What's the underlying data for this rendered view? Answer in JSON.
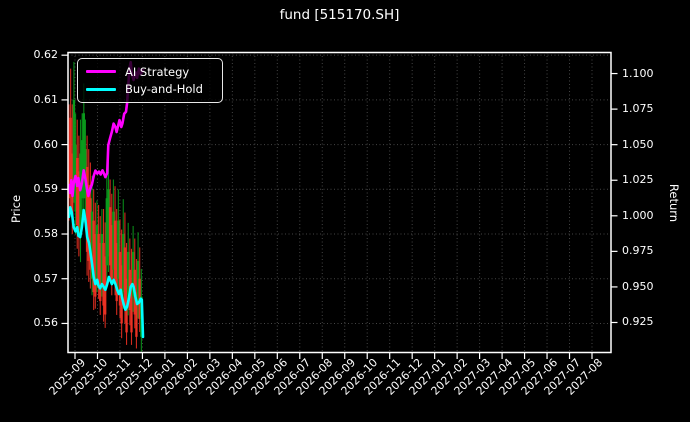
{
  "header": {
    "title": "fund [515170.SH]"
  },
  "chart_data": {
    "type": "candlestick+line",
    "title": "fund [515170.SH]",
    "grid": "dotted, from left axis and month ticks",
    "background": "#000000",
    "spine_color": "#ffffff",
    "grid_color": "#454545",
    "left_axis": {
      "label": "Price",
      "tick_labels": [
        "0.62",
        "0.61",
        "0.60",
        "0.59",
        "0.58",
        "0.57",
        "0.56"
      ],
      "range": [
        0.5535,
        0.6206
      ]
    },
    "right_axis": {
      "label": "Return",
      "tick_labels": [
        "1.100",
        "1.075",
        "1.050",
        "1.025",
        "1.000",
        "0.975",
        "0.950",
        "0.925"
      ],
      "range": [
        0.9039,
        1.1148
      ]
    },
    "x_axis": {
      "tick_labels": [
        "2025-09",
        "2025-10",
        "2025-11",
        "2025-12",
        "2026-01",
        "2026-02",
        "2026-03",
        "2026-04",
        "2026-05",
        "2026-06",
        "2026-07",
        "2026-08",
        "2026-09",
        "2026-10",
        "2026-11",
        "2026-12",
        "2027-01",
        "2027-02",
        "2027-03",
        "2027-04",
        "2027-05",
        "2027-06",
        "2027-07",
        "2027-08"
      ],
      "data_span_note": "data plotted only from 2025-09 to 2025-12"
    },
    "candle_colors": {
      "up": "#0b9e1d",
      "down": "#ee3224"
    },
    "series": [
      {
        "name": "AI Strategy",
        "color": "#ff00ff",
        "axis": "right",
        "width": 2.6,
        "points": [
          [
            0,
            1.0216
          ],
          [
            1,
            1.016
          ],
          [
            2,
            1.025
          ],
          [
            3,
            1.014
          ],
          [
            4,
            1.023
          ],
          [
            5.5,
            1.028
          ],
          [
            7,
            1.021
          ],
          [
            8,
            1.0266
          ],
          [
            9.5,
            1.018
          ],
          [
            11,
            1.023
          ],
          [
            12.5,
            1.032
          ],
          [
            14,
            1.026
          ],
          [
            15.5,
            1.018
          ],
          [
            16.5,
            1.0139
          ],
          [
            18,
            1.0188
          ],
          [
            19.5,
            1.022
          ],
          [
            21,
            1.028
          ],
          [
            22.5,
            1.0318
          ],
          [
            24,
            1.0297
          ],
          [
            25.5,
            1.0311
          ],
          [
            27,
            1.029
          ],
          [
            28.5,
            1.032
          ],
          [
            30,
            1.0293
          ],
          [
            31,
            1.0272
          ],
          [
            32.5,
            1.03
          ],
          [
            33.5,
            1.0497
          ],
          [
            35,
            1.0546
          ],
          [
            36.5,
            1.0592
          ],
          [
            38,
            1.0648
          ],
          [
            39.5,
            1.0624
          ],
          [
            40.5,
            1.0589
          ],
          [
            42,
            1.0638
          ],
          [
            43,
            1.0673
          ],
          [
            44.5,
            1.0624
          ],
          [
            45.5,
            1.0648
          ],
          [
            47,
            1.0718
          ],
          [
            48.5,
            1.0732
          ],
          [
            49.5,
            1.0793
          ],
          [
            50.5,
            1.092
          ],
          [
            51.5,
            1.104
          ],
          [
            52.5,
            1.108
          ],
          [
            53.5,
            1.1
          ],
          [
            55,
            1.0955
          ],
          [
            56.5,
            1.101
          ],
          [
            58,
            1.097
          ],
          [
            59.5,
            1.1035
          ],
          [
            61,
            1.0995
          ],
          [
            63,
            1.1025
          ]
        ]
      },
      {
        "name": "Buy-and-Hold",
        "color": "#00ffff",
        "axis": "right",
        "width": 2.6,
        "points": [
          [
            0,
            0.9993
          ],
          [
            1,
            1.006
          ],
          [
            2.5,
            1.002
          ],
          [
            4,
            0.992
          ],
          [
            5.5,
            0.989
          ],
          [
            7,
            0.992
          ],
          [
            8,
            0.986
          ],
          [
            9.5,
            0.985
          ],
          [
            11,
            0.992
          ],
          [
            12.5,
            1.004
          ],
          [
            14,
            0.997
          ],
          [
            15.5,
            0.985
          ],
          [
            17,
            0.981
          ],
          [
            18,
            0.976
          ],
          [
            19.5,
            0.967
          ],
          [
            21,
            0.957
          ],
          [
            22.5,
            0.952
          ],
          [
            24,
            0.955
          ],
          [
            25,
            0.951
          ],
          [
            26.5,
            0.949
          ],
          [
            28,
            0.952
          ],
          [
            29.5,
            0.95
          ],
          [
            31,
            0.948
          ],
          [
            32.5,
            0.952
          ],
          [
            34,
            0.957
          ],
          [
            35,
            0.955
          ],
          [
            36.5,
            0.952
          ],
          [
            38,
            0.955
          ],
          [
            39.5,
            0.952
          ],
          [
            41,
            0.948
          ],
          [
            42.5,
            0.945
          ],
          [
            44,
            0.948
          ],
          [
            45,
            0.943
          ],
          [
            46.5,
            0.938
          ],
          [
            48,
            0.934
          ],
          [
            49.5,
            0.936
          ],
          [
            51,
            0.942
          ],
          [
            52.5,
            0.95
          ],
          [
            54,
            0.952
          ],
          [
            55,
            0.95
          ],
          [
            56.5,
            0.943
          ],
          [
            58,
            0.938
          ],
          [
            59.5,
            0.939
          ],
          [
            61,
            0.9417
          ],
          [
            62,
            0.941
          ],
          [
            63,
            0.9148
          ]
        ]
      }
    ],
    "candles": [
      [
        0,
        0.583,
        0.609,
        0.588,
        0.6,
        "down"
      ],
      [
        1.4,
        0.5856,
        0.617,
        0.59,
        0.606,
        "down"
      ],
      [
        2.8,
        0.58,
        0.609,
        0.584,
        0.598,
        "down"
      ],
      [
        4.2,
        0.587,
        0.6185,
        0.592,
        0.61,
        "up"
      ],
      [
        5.6,
        0.58,
        0.607,
        0.585,
        0.6,
        "up"
      ],
      [
        7,
        0.5767,
        0.6056,
        0.582,
        0.597,
        "down"
      ],
      [
        8.4,
        0.575,
        0.602,
        0.58,
        0.594,
        "down"
      ],
      [
        9.8,
        0.5737,
        0.6056,
        0.58,
        0.598,
        "up"
      ],
      [
        11.2,
        0.584,
        0.607,
        0.588,
        0.601,
        "up"
      ],
      [
        12.6,
        0.5826,
        0.6137,
        0.588,
        0.607,
        "up"
      ],
      [
        14,
        0.584,
        0.6056,
        0.588,
        0.599,
        "up"
      ],
      [
        15.4,
        0.5707,
        0.602,
        0.576,
        0.595,
        "down"
      ],
      [
        16.8,
        0.5693,
        0.599,
        0.574,
        0.591,
        "down"
      ],
      [
        18.2,
        0.5678,
        0.596,
        0.572,
        0.588,
        "down"
      ],
      [
        19.6,
        0.5663,
        0.593,
        0.57,
        0.585,
        "up"
      ],
      [
        21,
        0.563,
        0.59,
        0.567,
        0.583,
        "down"
      ],
      [
        22.4,
        0.5633,
        0.587,
        0.566,
        0.58,
        "down"
      ],
      [
        23.8,
        0.567,
        0.5875,
        0.57,
        0.582,
        "up"
      ],
      [
        25.2,
        0.5655,
        0.5865,
        0.568,
        0.58,
        "down"
      ],
      [
        26.6,
        0.5619,
        0.584,
        0.565,
        0.578,
        "down"
      ],
      [
        28,
        0.566,
        0.5856,
        0.569,
        0.58,
        "up"
      ],
      [
        29.4,
        0.5604,
        0.5856,
        0.564,
        0.578,
        "down"
      ],
      [
        30.8,
        0.559,
        0.5826,
        0.562,
        0.575,
        "down"
      ],
      [
        32.2,
        0.5693,
        0.5944,
        0.573,
        0.588,
        "up"
      ],
      [
        33.6,
        0.5715,
        0.5966,
        0.575,
        0.59,
        "up"
      ],
      [
        35,
        0.5693,
        0.5922,
        0.573,
        0.586,
        "down"
      ],
      [
        36.4,
        0.5663,
        0.589,
        0.57,
        0.582,
        "down"
      ],
      [
        37.8,
        0.569,
        0.5922,
        0.572,
        0.585,
        "up"
      ],
      [
        39.2,
        0.5663,
        0.5907,
        0.57,
        0.583,
        "down"
      ],
      [
        40.6,
        0.5619,
        0.5856,
        0.565,
        0.578,
        "down"
      ],
      [
        42,
        0.567,
        0.59,
        0.57,
        0.583,
        "up"
      ],
      [
        43.4,
        0.5612,
        0.5833,
        0.564,
        0.576,
        "down"
      ],
      [
        44.8,
        0.5567,
        0.581,
        0.56,
        0.573,
        "down"
      ],
      [
        46.2,
        0.5633,
        0.5878,
        0.567,
        0.58,
        "up"
      ],
      [
        47.6,
        0.56,
        0.5848,
        0.564,
        0.577,
        "down"
      ],
      [
        49,
        0.5552,
        0.578,
        0.558,
        0.57,
        "down"
      ],
      [
        50.4,
        0.5618,
        0.5825,
        0.565,
        0.576,
        "up"
      ],
      [
        51.8,
        0.5596,
        0.579,
        0.563,
        0.572,
        "down"
      ],
      [
        53.2,
        0.5552,
        0.5767,
        0.558,
        0.569,
        "down"
      ],
      [
        54.6,
        0.5626,
        0.5818,
        0.566,
        0.576,
        "up"
      ],
      [
        56,
        0.5589,
        0.579,
        0.562,
        0.572,
        "down"
      ],
      [
        57.4,
        0.5544,
        0.5744,
        0.557,
        0.567,
        "down"
      ],
      [
        58.8,
        0.5611,
        0.5804,
        0.564,
        0.574,
        "up"
      ],
      [
        60.2,
        0.5581,
        0.577,
        0.561,
        0.57,
        "down"
      ],
      [
        61.6,
        0.5537,
        0.5722,
        0.557,
        0.566,
        "up"
      ]
    ]
  }
}
